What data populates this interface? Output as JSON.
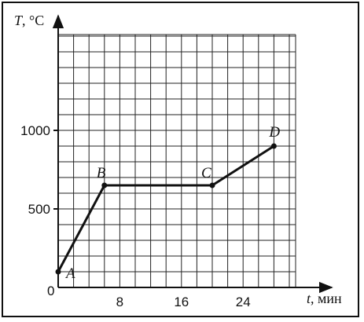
{
  "chart_data": {
    "type": "line",
    "y_axis_label": {
      "symbol": "T",
      "unit": ", °C"
    },
    "x_axis_label": {
      "symbol": "t",
      "unit": ", мин"
    },
    "origin_label": "0",
    "x_ticks": [
      8,
      16,
      24
    ],
    "y_ticks": [
      500,
      1000
    ],
    "xlim": [
      0,
      30
    ],
    "ylim": [
      0,
      1600
    ],
    "x_grid_step": 2,
    "y_grid_step": 100,
    "grid": true,
    "series": [
      {
        "points": [
          {
            "label": "A",
            "x": 0,
            "y": 100
          },
          {
            "label": "B",
            "x": 6,
            "y": 650
          },
          {
            "label": "C",
            "x": 20,
            "y": 650
          },
          {
            "label": "D",
            "x": 28,
            "y": 900
          }
        ]
      }
    ]
  }
}
